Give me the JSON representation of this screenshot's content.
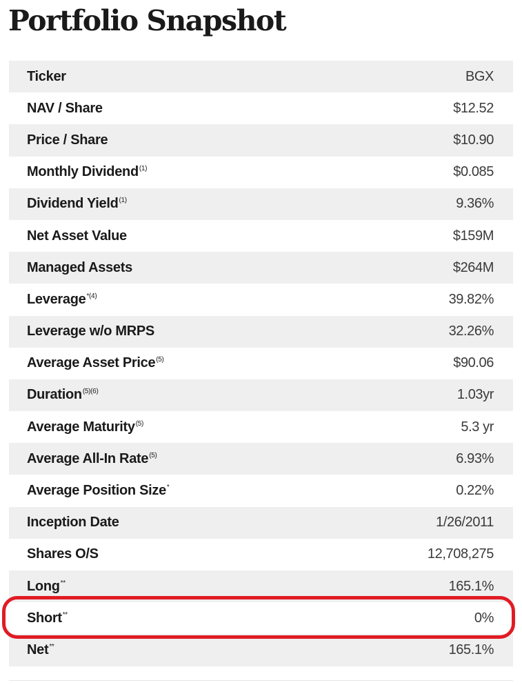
{
  "title": "Portfolio Snapshot",
  "rows": [
    {
      "label": "Ticker",
      "sup": "",
      "value": "BGX"
    },
    {
      "label": "NAV / Share",
      "sup": "",
      "value": "$12.52"
    },
    {
      "label": "Price / Share",
      "sup": "",
      "value": "$10.90"
    },
    {
      "label": "Monthly Dividend",
      "sup": "(1)",
      "value": "$0.085"
    },
    {
      "label": "Dividend Yield",
      "sup": "(1)",
      "value": "9.36%"
    },
    {
      "label": "Net Asset Value",
      "sup": "",
      "value": "$159M"
    },
    {
      "label": "Managed Assets",
      "sup": "",
      "value": "$264M"
    },
    {
      "label": "Leverage",
      "sup": "*(4)",
      "value": "39.82%"
    },
    {
      "label": "Leverage w/o MRPS",
      "sup": "",
      "value": "32.26%"
    },
    {
      "label": "Average Asset Price",
      "sup": "(5)",
      "value": "$90.06"
    },
    {
      "label": "Duration",
      "sup": "(5)(6)",
      "value": "1.03yr"
    },
    {
      "label": "Average Maturity",
      "sup": "(5)",
      "value": "5.3 yr"
    },
    {
      "label": "Average All-In Rate",
      "sup": "(5)",
      "value": "6.93%"
    },
    {
      "label": "Average Position Size",
      "sup": "*",
      "value": "0.22%"
    },
    {
      "label": "Inception Date",
      "sup": "",
      "value": "1/26/2011"
    },
    {
      "label": "Shares O/S",
      "sup": "",
      "value": "12,708,275"
    },
    {
      "label": "Long",
      "sup": "**",
      "value": "165.1%"
    },
    {
      "label": "Short",
      "sup": "**",
      "value": "0%"
    },
    {
      "label": "Net",
      "sup": "**",
      "value": "165.1%"
    }
  ],
  "highlight_color": "#e01b24",
  "stripe_color": "#efefef"
}
